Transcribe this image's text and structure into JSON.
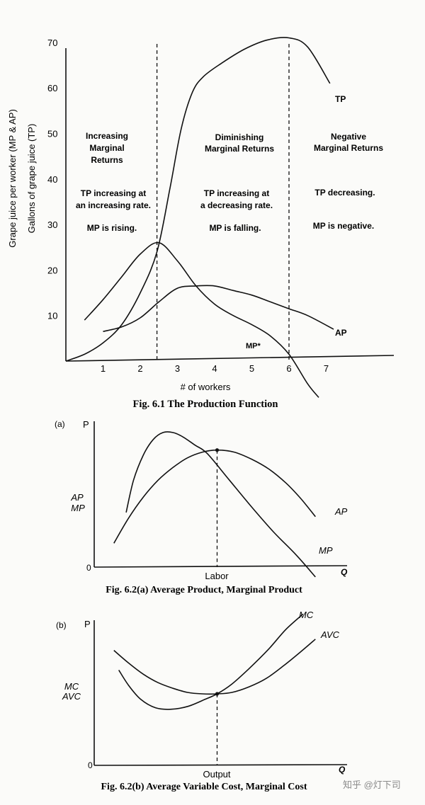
{
  "chart_data": [
    {
      "type": "line",
      "title": "Fig. 6.1 The Production Function",
      "xlabel": "# of workers",
      "ylabel_outer": "Grape juice per worker (MP & AP)",
      "ylabel_inner": "Gallons of grape juice (TP)",
      "x_ticks": [
        "1",
        "2",
        "3",
        "4",
        "5",
        "6",
        "7"
      ],
      "y_ticks": [
        "10",
        "20",
        "30",
        "40",
        "50",
        "60",
        "70"
      ],
      "xlim": [
        0,
        8.3
      ],
      "ylim": [
        0,
        70
      ],
      "boundaries": [
        2.45,
        6.0
      ],
      "series": [
        {
          "name": "TP",
          "x": [
            0,
            0.5,
            1,
            1.5,
            2,
            2.45,
            2.8,
            3.1,
            3.4,
            3.7,
            4.2,
            4.8,
            5.4,
            6.0,
            6.5,
            7.1
          ],
          "y": [
            0,
            1.5,
            4,
            8,
            15,
            24,
            38,
            51,
            59,
            62.5,
            65.5,
            68.5,
            70.5,
            71,
            69,
            61
          ]
        },
        {
          "name": "MP*",
          "x": [
            0.5,
            1,
            1.5,
            2,
            2.5,
            3,
            3.5,
            4,
            4.5,
            5,
            5.5,
            6,
            6.5,
            6.8
          ],
          "y": [
            9,
            13.5,
            18.5,
            23.5,
            26,
            22,
            16.5,
            12.5,
            10,
            8,
            5.5,
            1.5,
            -5,
            -8
          ]
        },
        {
          "name": "AP",
          "x": [
            1,
            1.5,
            2,
            2.5,
            3,
            3.5,
            4,
            4.5,
            5,
            5.5,
            6,
            6.5,
            7.2
          ],
          "y": [
            6.5,
            7.5,
            9.5,
            13,
            16,
            16.5,
            16.5,
            15.5,
            14.5,
            13,
            11.5,
            10,
            7
          ]
        }
      ],
      "region_labels": [
        {
          "heading": [
            "Increasing",
            "Marginal",
            "Returns"
          ],
          "tp_note": [
            "TP increasing at",
            "an increasing rate."
          ],
          "mp_note": "MP is rising."
        },
        {
          "heading": [
            "Diminishing",
            "Marginal Returns"
          ],
          "tp_note": [
            "TP increasing at",
            "a decreasing rate."
          ],
          "mp_note": "MP is falling."
        },
        {
          "heading": [
            "Negative",
            "Marginal Returns"
          ],
          "tp_note": [
            "TP decreasing."
          ],
          "mp_note": "MP is negative."
        }
      ]
    },
    {
      "type": "line",
      "panel": "(a)",
      "title": "Fig. 6.2(a)  Average Product, Marginal Product",
      "xlabel": "Labor",
      "x_axis_end": "Q",
      "y_axis_top": "P",
      "ylabel": [
        "AP",
        "MP"
      ],
      "origin": "0",
      "series": [
        {
          "name": "AP",
          "x": [
            0.08,
            0.14,
            0.2,
            0.26,
            0.32,
            0.38,
            0.44,
            0.5,
            0.57,
            0.64,
            0.71,
            0.78,
            0.84,
            0.9
          ],
          "y": [
            0.17,
            0.35,
            0.5,
            0.62,
            0.71,
            0.78,
            0.82,
            0.835,
            0.82,
            0.77,
            0.7,
            0.6,
            0.49,
            0.36
          ]
        },
        {
          "name": "MP",
          "x": [
            0.13,
            0.16,
            0.2,
            0.24,
            0.28,
            0.32,
            0.36,
            0.41,
            0.46,
            0.55,
            0.64,
            0.73,
            0.82,
            0.9
          ],
          "y": [
            0.39,
            0.62,
            0.8,
            0.91,
            0.96,
            0.96,
            0.93,
            0.87,
            0.81,
            0.62,
            0.43,
            0.25,
            0.09,
            -0.07
          ]
        }
      ]
    },
    {
      "type": "line",
      "panel": "(b)",
      "title": "Fig. 6.2(b)  Average Variable Cost, Marginal Cost",
      "xlabel": "Output",
      "x_axis_end": "Q",
      "y_axis_top": "P",
      "ylabel": [
        "MC",
        "AVC"
      ],
      "origin": "0",
      "series": [
        {
          "name": "MC",
          "x": [
            0.1,
            0.14,
            0.19,
            0.25,
            0.31,
            0.38,
            0.45,
            0.5,
            0.56,
            0.63,
            0.71,
            0.78,
            0.85
          ],
          "y": [
            0.68,
            0.57,
            0.47,
            0.41,
            0.4,
            0.42,
            0.47,
            0.51,
            0.58,
            0.69,
            0.83,
            0.97,
            1.08
          ]
        },
        {
          "name": "AVC",
          "x": [
            0.08,
            0.14,
            0.2,
            0.26,
            0.32,
            0.38,
            0.44,
            0.5,
            0.56,
            0.63,
            0.7,
            0.77,
            0.84,
            0.9
          ],
          "y": [
            0.82,
            0.73,
            0.65,
            0.59,
            0.55,
            0.52,
            0.51,
            0.51,
            0.52,
            0.56,
            0.62,
            0.71,
            0.81,
            0.9
          ]
        }
      ]
    }
  ],
  "watermark": "知乎 @灯下司"
}
